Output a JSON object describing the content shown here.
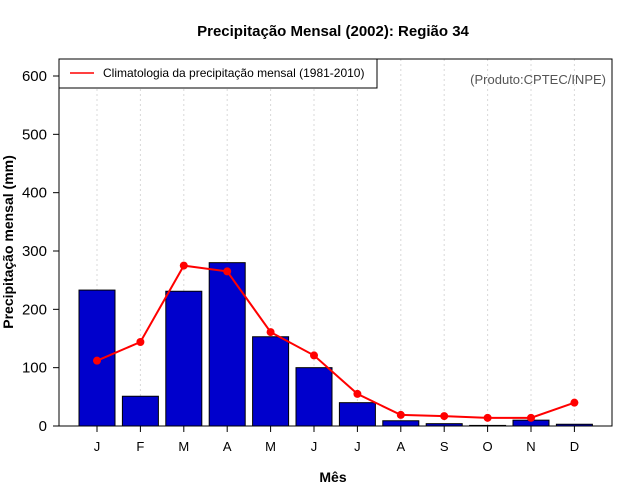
{
  "chart_data": {
    "type": "bar",
    "title": "Precipitação Mensal (2002): Região 34",
    "xlabel": "Mês",
    "ylabel": "Precipitação mensal (mm)",
    "ylim": [
      0,
      600
    ],
    "yticks": [
      0,
      100,
      200,
      300,
      400,
      500,
      600
    ],
    "categories": [
      "J",
      "F",
      "M",
      "A",
      "M",
      "J",
      "J",
      "A",
      "S",
      "O",
      "N",
      "D"
    ],
    "series": [
      {
        "name": "Precipitação mensal (2002)",
        "kind": "bar",
        "color": "#0000cc",
        "values": [
          233,
          51,
          231,
          280,
          153,
          100,
          40,
          9,
          4,
          1,
          10,
          3
        ]
      },
      {
        "name": "Climatologia da precipitação mensal (1981-2010)",
        "kind": "line",
        "color": "#ff0000",
        "values": [
          112,
          144,
          275,
          265,
          161,
          121,
          55,
          19,
          17,
          14,
          14,
          40
        ]
      }
    ],
    "legend": {
      "placement": "top-left",
      "label": "Climatologia da precipitação mensal (1981-2010)"
    },
    "credit": "(Produto:CPTEC/INPE)",
    "grid": "vertical-dotted"
  }
}
